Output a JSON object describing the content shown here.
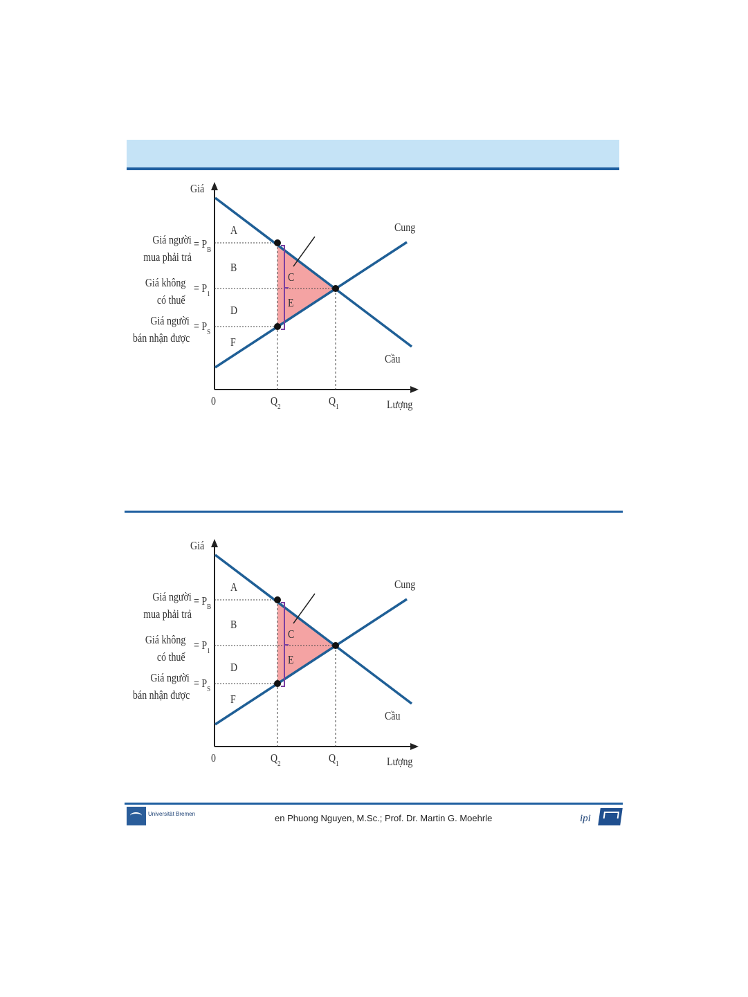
{
  "diagram_labels": {
    "y_axis": "Giá",
    "x_axis": "Lượng",
    "origin": "0",
    "supply": "Cung",
    "demand": "Cầu",
    "buyer_price_line1": "Giá người",
    "buyer_price_line2": "mua phải trả",
    "buyer_price_symbol": "= P",
    "buyer_price_sub": "B",
    "notax_price_line1": "Giá không",
    "notax_price_line2": "có thuế",
    "notax_price_symbol": "= P",
    "notax_price_sub": "1",
    "seller_price_line1": "Giá người",
    "seller_price_line2": "bán nhận được",
    "seller_price_symbol": "= P",
    "seller_price_sub": "S",
    "q2": "Q",
    "q2_sub": "2",
    "q1": "Q",
    "q1_sub": "1",
    "area_a": "A",
    "area_b": "B",
    "area_c": "C",
    "area_d": "D",
    "area_e": "E",
    "area_f": "F"
  },
  "colors": {
    "header_band": "#c5e3f6",
    "rule": "#1f5fa0",
    "curve": "#1f5f96",
    "deadweight_fill": "#f4a3a3",
    "bracket": "#7b3fa0"
  },
  "footer": {
    "credit": "en Phuong Nguyen, M.Sc.; Prof. Dr. Martin G. Moehrle",
    "left_logo_text": "Universität Bremen",
    "right_logo_mark": "ipi"
  }
}
